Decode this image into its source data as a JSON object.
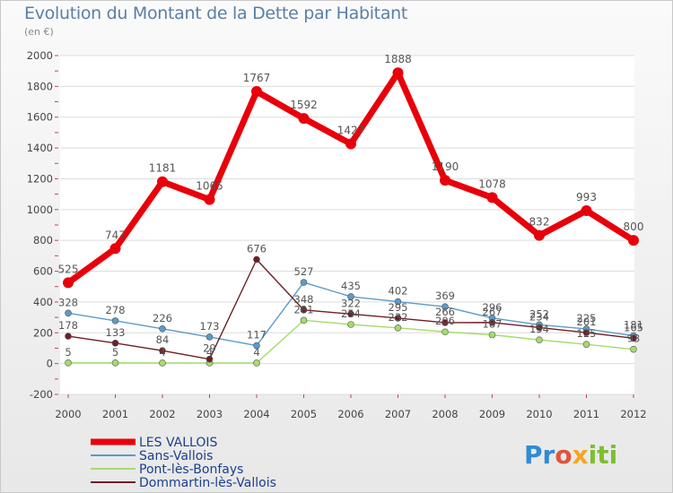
{
  "chart_data": {
    "type": "line",
    "title": "Evolution du Montant de la Dette par Habitant",
    "subtitle": "(en €)",
    "xlabel": "",
    "ylabel": "",
    "ylim": [
      -200,
      2000
    ],
    "yticks": [
      -200,
      0,
      200,
      400,
      600,
      800,
      1000,
      1200,
      1400,
      1600,
      1800,
      2000
    ],
    "categories": [
      "2000",
      "2001",
      "2002",
      "2003",
      "2004",
      "2005",
      "2006",
      "2007",
      "2008",
      "2009",
      "2010",
      "2011",
      "2012"
    ],
    "grid": "horizontal",
    "legend_position": "bottom-left",
    "series": [
      {
        "name": "LES VALLOIS",
        "color": "#e8000a",
        "width": 7,
        "marker": 6,
        "values": [
          525,
          747,
          1181,
          1065,
          1767,
          1592,
          1427,
          1888,
          1190,
          1078,
          832,
          993,
          800
        ]
      },
      {
        "name": "Sans-Vallois",
        "color": "#5b9bc9",
        "width": 1.4,
        "marker": 3.5,
        "values": [
          328,
          278,
          226,
          173,
          117,
          527,
          435,
          402,
          369,
          296,
          252,
          225,
          181
        ]
      },
      {
        "name": "Pont-lès-Bonfays",
        "color": "#a4dc6a",
        "width": 1.4,
        "marker": 3.5,
        "values": [
          5,
          5,
          4,
          4,
          4,
          281,
          254,
          232,
          206,
          187,
          154,
          125,
          93
        ]
      },
      {
        "name": "Dommartin-lès-Vallois",
        "color": "#6e1f24",
        "width": 1.4,
        "marker": 3.5,
        "values": [
          178,
          133,
          84,
          29,
          676,
          348,
          322,
          295,
          266,
          267,
          234,
          201,
          165
        ]
      }
    ]
  },
  "logo": {
    "p1": "Pr",
    "p2": "o",
    "p3": "x",
    "p4": "iti"
  }
}
